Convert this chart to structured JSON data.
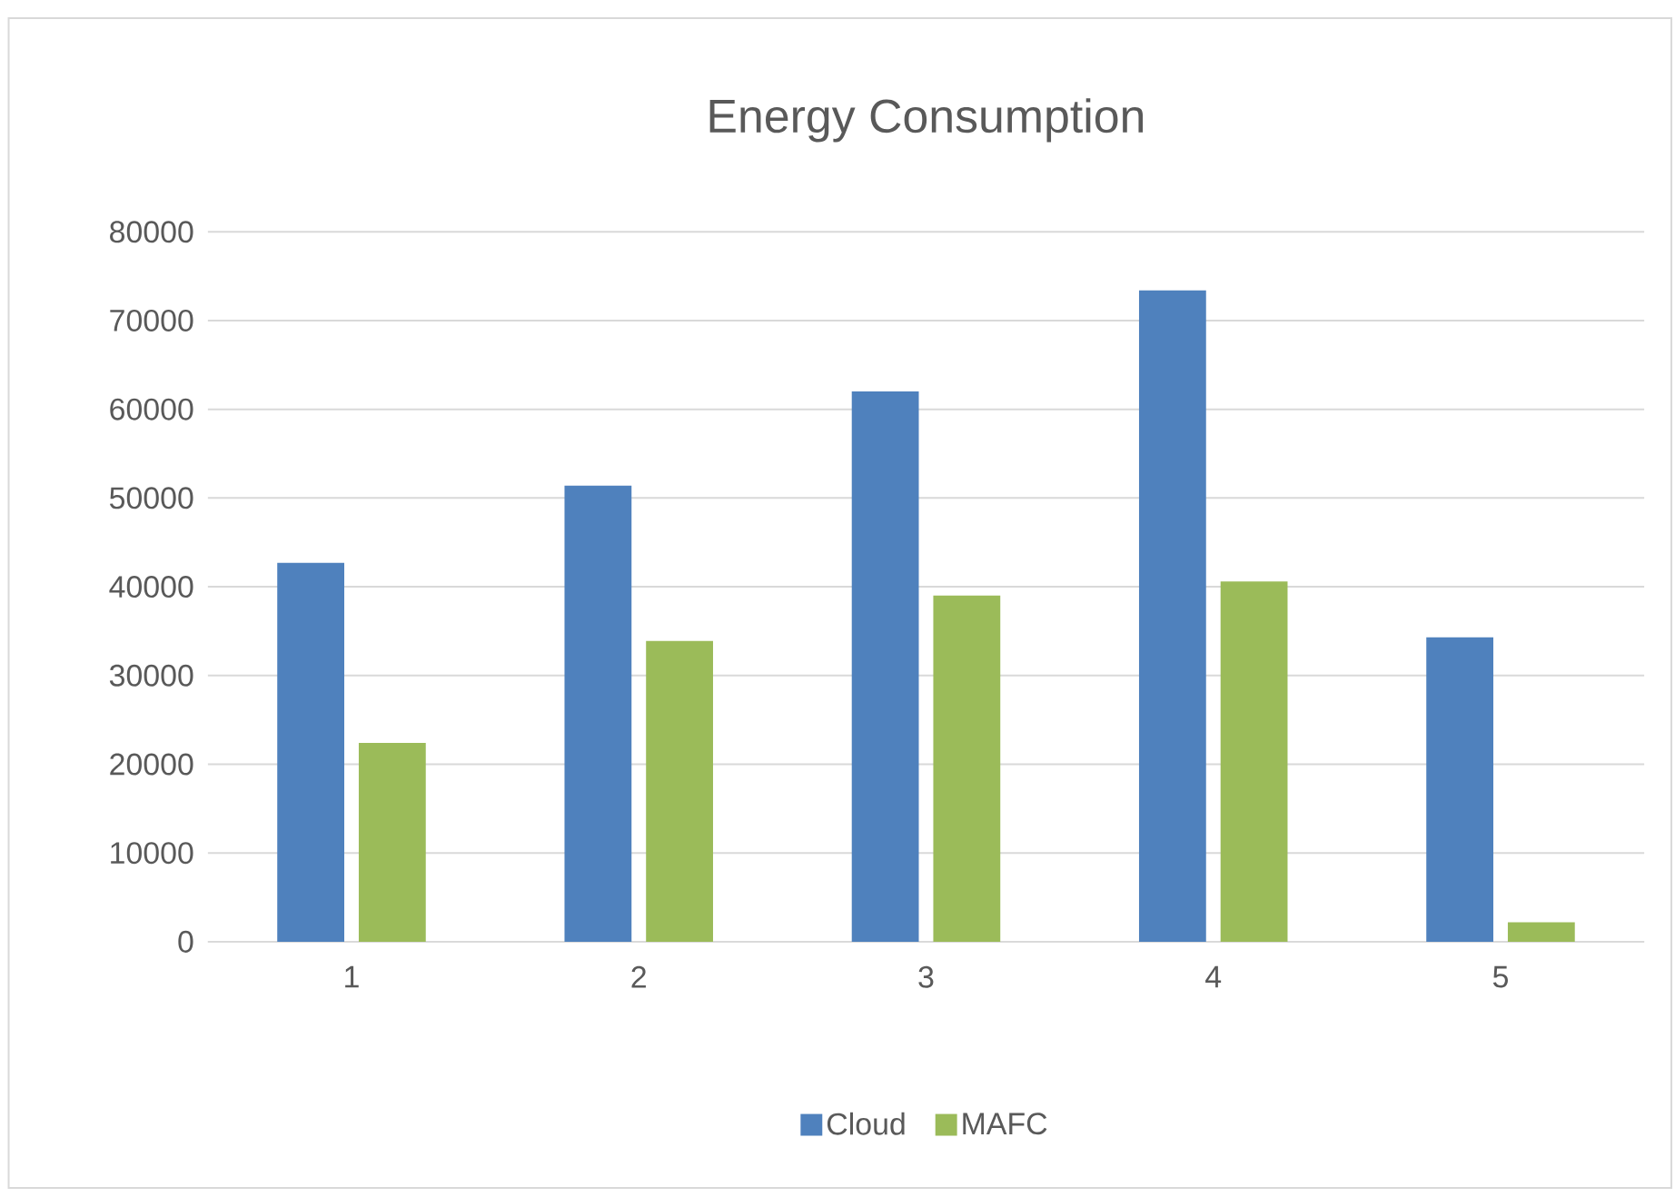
{
  "chart_data": {
    "type": "bar",
    "title": "Energy Consumption",
    "categories": [
      "1",
      "2",
      "3",
      "4",
      "5"
    ],
    "series": [
      {
        "name": "Cloud",
        "color": "#4f81bd",
        "values": [
          42700,
          51400,
          62000,
          73400,
          34300
        ]
      },
      {
        "name": "MAFC",
        "color": "#9bbb59",
        "values": [
          22400,
          33900,
          39000,
          40600,
          2200
        ]
      }
    ],
    "ylim": [
      0,
      80000
    ],
    "yticks": [
      0,
      10000,
      20000,
      30000,
      40000,
      50000,
      60000,
      70000,
      80000
    ],
    "grid": "y",
    "legend": "bottom"
  }
}
